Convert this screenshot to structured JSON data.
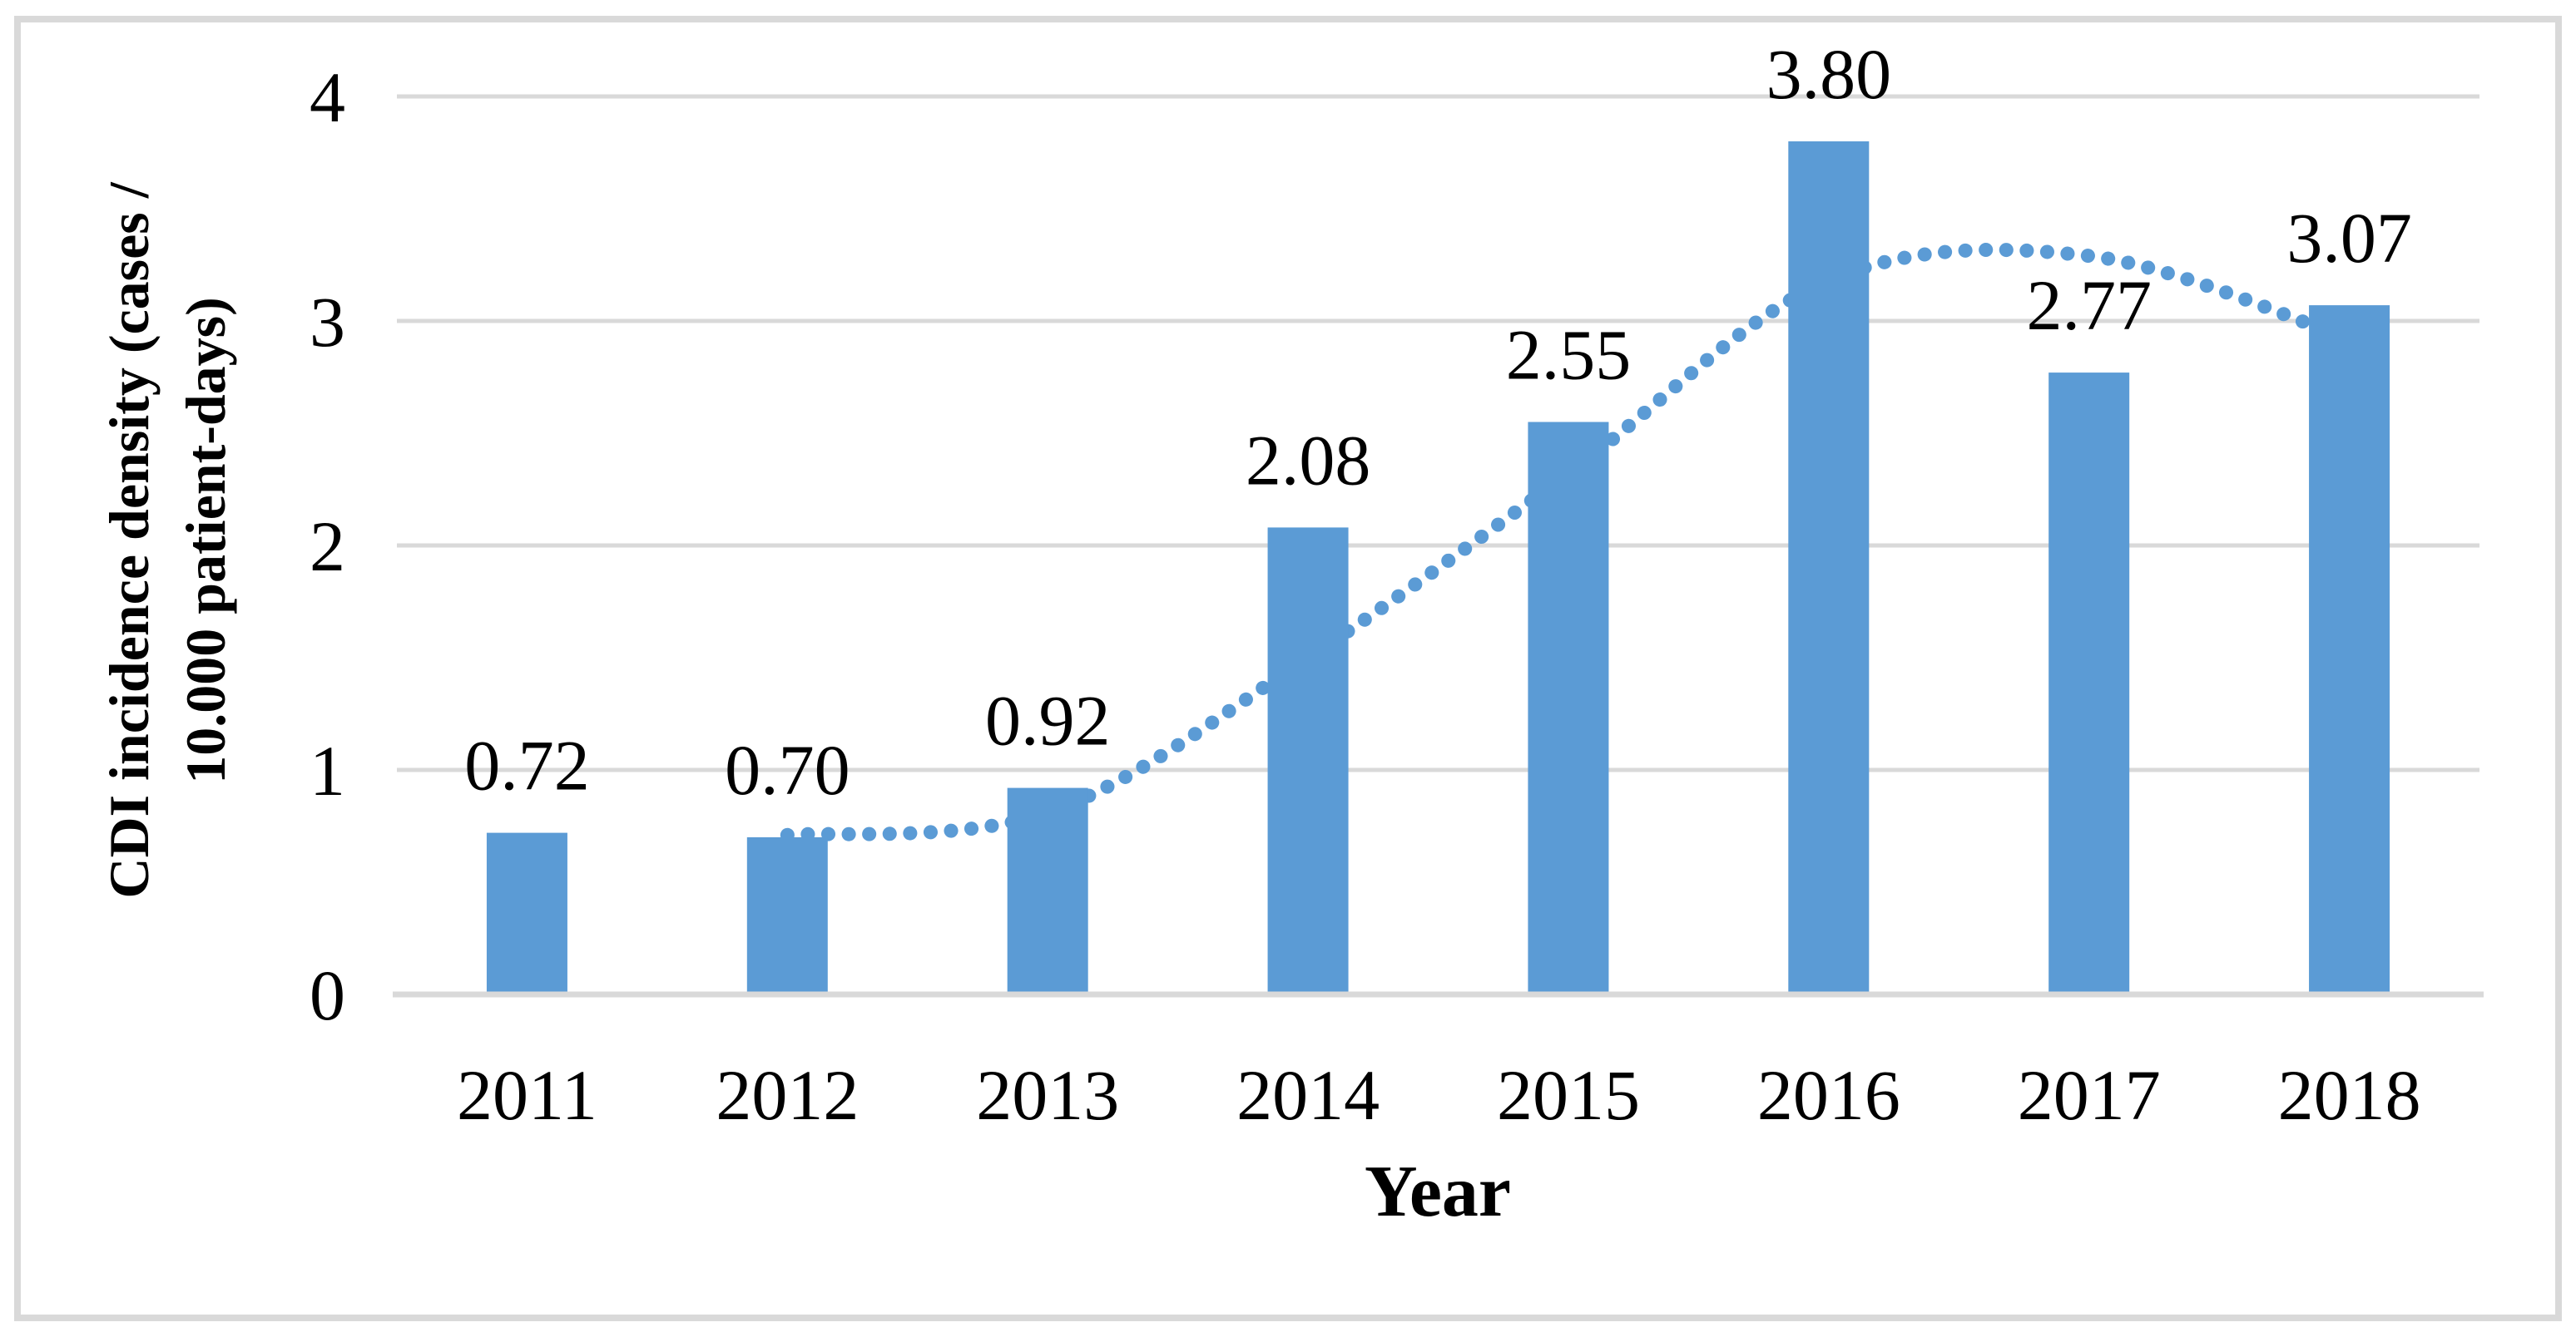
{
  "chart_data": {
    "type": "bar",
    "title": "",
    "categories": [
      "2011",
      "2012",
      "2013",
      "2014",
      "2015",
      "2016",
      "2017",
      "2018"
    ],
    "values": [
      0.72,
      0.7,
      0.92,
      2.08,
      2.55,
      3.8,
      2.77,
      3.07
    ],
    "bar_value_labels": [
      "0.72",
      "0.70",
      "0.92",
      "2.08",
      "2.55",
      "3.80",
      "2.77",
      "3.07"
    ],
    "xlabel": "Year",
    "ylabel_line1": "CDI incidence density (cases /",
    "ylabel_line2": "10.000 patient-days)",
    "ytick_labels": [
      "0",
      "1",
      "2",
      "3",
      "4"
    ],
    "ytick_values": [
      0,
      1,
      2,
      3,
      4
    ],
    "ylim": [
      0,
      4
    ],
    "grid": true,
    "legend": "none",
    "trendline": {
      "type": "moving_average_period_2",
      "style": "dotted",
      "x": [
        "2012",
        "2013",
        "2014",
        "2015",
        "2016",
        "2017",
        "2018"
      ],
      "values": [
        0.71,
        0.81,
        1.5,
        2.32,
        3.18,
        3.29,
        2.92
      ],
      "drawn_behind_bars": true
    },
    "colors": {
      "bar": "#5b9bd5",
      "trend": "#5b9bd5",
      "gridline": "#d9d9d9",
      "axis_line": "#d9d9d9",
      "border": "#d9d9d9",
      "text": "#000000",
      "background": "#ffffff"
    }
  }
}
